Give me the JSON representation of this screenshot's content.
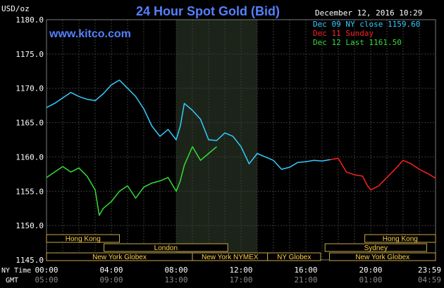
{
  "header": {
    "title": "24 Hour Spot Gold (Bid)",
    "unit": "USD/oz",
    "datetime": "December 12, 2016 10:29",
    "source": "www.kitco.com"
  },
  "legend": [
    {
      "label": "Dec 09 NY close 1159.60",
      "color": "#33ccff"
    },
    {
      "label": "Dec 11 Sunday",
      "color": "#ff2020"
    },
    {
      "label": "Dec 12 Last 1161.50",
      "color": "#33dd33"
    }
  ],
  "time_rows": {
    "ny_label": "NY Time",
    "gmt_label": "GMT",
    "ny_ticks": [
      "00:00",
      "04:00",
      "08:00",
      "12:00",
      "16:00",
      "20:00",
      "23:59"
    ],
    "gmt_ticks": [
      "05:00",
      "09:00",
      "13:00",
      "17:00",
      "21:00",
      "01:00",
      "04:59"
    ]
  },
  "sessions": [
    {
      "label": "Hong Kong",
      "start": 0,
      "end": 8.25,
      "row": 0
    },
    {
      "label": "London",
      "start": 6.5,
      "end": 20.5,
      "row": 1
    },
    {
      "label": "New York Globex",
      "start": 0,
      "end": 16.5,
      "row": 2
    },
    {
      "label": "New York NYMEX",
      "start": 16.5,
      "end": 25,
      "row": 2
    },
    {
      "label": "NY Globex",
      "start": 25,
      "end": 31,
      "row": 2
    },
    {
      "label": "Hong Kong",
      "start": 36,
      "end": 44,
      "row": 0
    },
    {
      "label": "Sydney",
      "start": 31.5,
      "end": 43,
      "row": 1
    },
    {
      "label": "New York Globex",
      "start": 32,
      "end": 44,
      "row": 2
    }
  ],
  "chart_data": {
    "type": "line",
    "title": "24 Hour Spot Gold (Bid)",
    "ylabel": "USD/oz",
    "ylim": [
      1145,
      1180
    ],
    "yticks": [
      1145.0,
      1150.0,
      1155.0,
      1160.0,
      1165.0,
      1170.0,
      1175.0,
      1180.0
    ],
    "xlim": [
      0,
      24
    ],
    "xticks_hours": [
      0,
      4,
      8,
      12,
      16,
      20,
      24
    ],
    "shaded_hours": [
      8,
      13
    ],
    "grid": true,
    "legend_position": "top-right",
    "series": [
      {
        "name": "Dec 09 NY close 1159.60",
        "color": "#33ccff",
        "x": [
          0,
          0.5,
          1,
          1.5,
          2,
          2.5,
          3,
          3.5,
          4,
          4.5,
          5,
          5.5,
          6,
          6.5,
          7,
          7.5,
          8,
          8.25,
          8.5,
          9,
          9.5,
          10,
          10.5,
          11,
          11.5,
          12,
          12.5,
          13,
          13.5,
          14,
          14.5,
          15,
          15.5,
          16,
          16.5,
          17,
          17.5
        ],
        "y": [
          1167.2,
          1167.8,
          1168.6,
          1169.4,
          1168.8,
          1168.4,
          1168.2,
          1169.2,
          1170.5,
          1171.2,
          1170.0,
          1168.8,
          1167.0,
          1164.5,
          1163.0,
          1164.0,
          1162.5,
          1164.5,
          1167.8,
          1166.8,
          1165.5,
          1162.5,
          1162.4,
          1163.5,
          1163.0,
          1161.5,
          1159.0,
          1160.5,
          1160.0,
          1159.5,
          1158.2,
          1158.5,
          1159.2,
          1159.3,
          1159.5,
          1159.4,
          1159.6
        ]
      },
      {
        "name": "Dec 11 Sunday",
        "color": "#ff2020",
        "x": [
          17.5,
          18,
          18.5,
          19,
          19.5,
          19.75,
          20,
          20.5,
          21,
          21.5,
          22,
          22.5,
          23,
          23.5,
          24
        ],
        "y": [
          1159.6,
          1159.8,
          1157.8,
          1157.4,
          1157.2,
          1156.0,
          1155.2,
          1155.8,
          1157.0,
          1158.2,
          1159.5,
          1159.0,
          1158.2,
          1157.6,
          1156.9
        ]
      },
      {
        "name": "Dec 12 Last 1161.50",
        "color": "#33dd33",
        "x": [
          0,
          0.5,
          1,
          1.5,
          2,
          2.5,
          3,
          3.25,
          3.5,
          4,
          4.5,
          5,
          5.5,
          6,
          6.5,
          7,
          7.5,
          8,
          8.25,
          8.5,
          9,
          9.5,
          10,
          10.5
        ],
        "y": [
          1157.0,
          1157.8,
          1158.6,
          1157.8,
          1158.4,
          1157.2,
          1155.2,
          1151.5,
          1152.5,
          1153.5,
          1155.0,
          1155.8,
          1154.0,
          1155.6,
          1156.2,
          1156.5,
          1157.0,
          1155.0,
          1156.5,
          1158.8,
          1161.5,
          1159.5,
          1160.5,
          1161.5
        ]
      }
    ]
  }
}
